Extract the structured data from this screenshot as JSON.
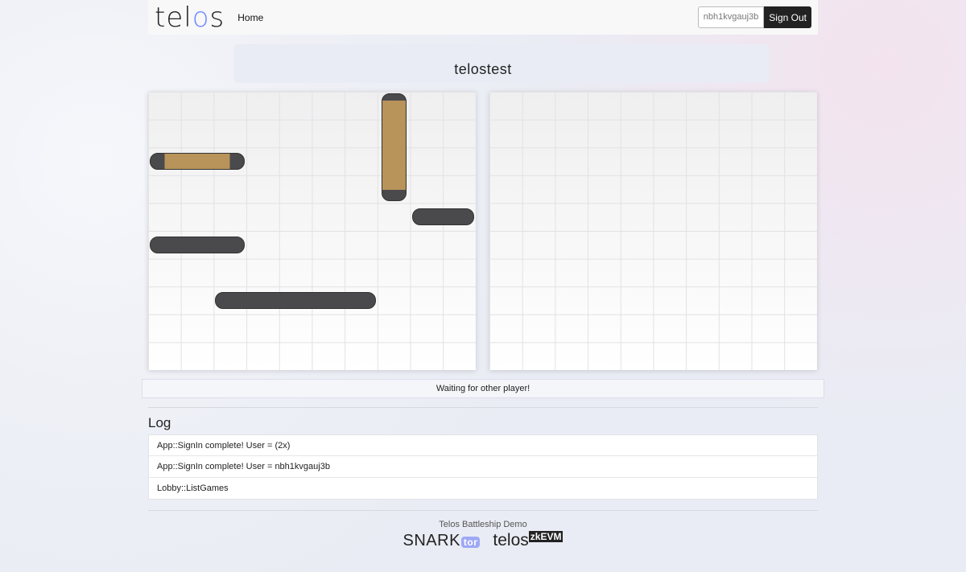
{
  "nav": {
    "logo": "telos",
    "home": "Home",
    "user": "nbh1kvgauj3b",
    "sign_out": "Sign Out"
  },
  "game": {
    "title": "telostest",
    "status": "Waiting for other player!"
  },
  "boards": {
    "rows": 10,
    "cols": 10,
    "own_ships": [
      {
        "name": "battleship",
        "row": 0,
        "col": 7,
        "length": 4,
        "orientation": "vertical",
        "color": "tan"
      },
      {
        "name": "cruiser",
        "row": 2,
        "col": 0,
        "length": 3,
        "orientation": "horizontal",
        "color": "tan"
      },
      {
        "name": "destroyer",
        "row": 4,
        "col": 8,
        "length": 2,
        "orientation": "horizontal",
        "color": "gray"
      },
      {
        "name": "submarine",
        "row": 5,
        "col": 0,
        "length": 3,
        "orientation": "horizontal",
        "color": "gray"
      },
      {
        "name": "carrier",
        "row": 7,
        "col": 2,
        "length": 5,
        "orientation": "horizontal",
        "color": "gray"
      }
    ]
  },
  "log": {
    "title": "Log",
    "entries": [
      "App::SignIn complete! User = (2x)",
      "App::SignIn complete! User = nbh1kvgauj3b",
      "Lobby::ListGames"
    ]
  },
  "footer": {
    "caption": "Telos Battleship Demo",
    "snark": "SNARK",
    "tor": "tor",
    "telos": "telos",
    "zkevm": "zkEVM"
  }
}
